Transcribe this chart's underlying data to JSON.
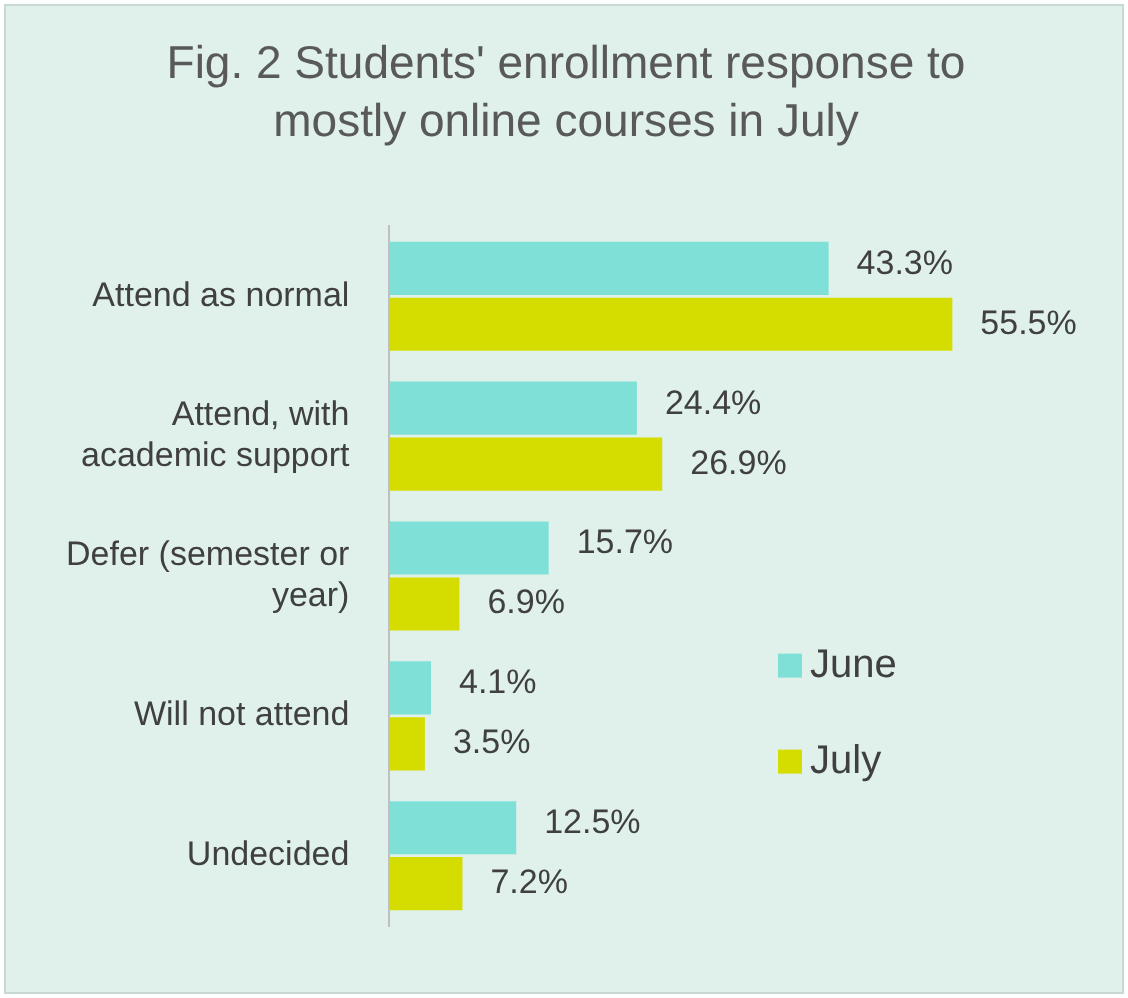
{
  "chart_data": {
    "type": "bar",
    "orientation": "horizontal",
    "title": "Fig. 2 Students' enrollment response to mostly online courses in July",
    "categories": [
      "Attend as normal",
      "Attend, with academic support",
      "Defer (semester or year)",
      "Will not attend",
      "Undecided"
    ],
    "series": [
      {
        "name": "June",
        "color": "#7fe0d8",
        "values": [
          43.3,
          24.4,
          15.7,
          4.1,
          12.5
        ],
        "value_labels": [
          "43.3%",
          "24.4%",
          "15.7%",
          "4.1%",
          "12.5%"
        ]
      },
      {
        "name": "July",
        "color": "#d4dc00",
        "values": [
          55.5,
          26.9,
          6.9,
          3.5,
          7.2
        ],
        "value_labels": [
          "55.5%",
          "26.9%",
          "6.9%",
          "3.5%",
          "7.2%"
        ]
      }
    ],
    "legend": "bottom right"
  }
}
